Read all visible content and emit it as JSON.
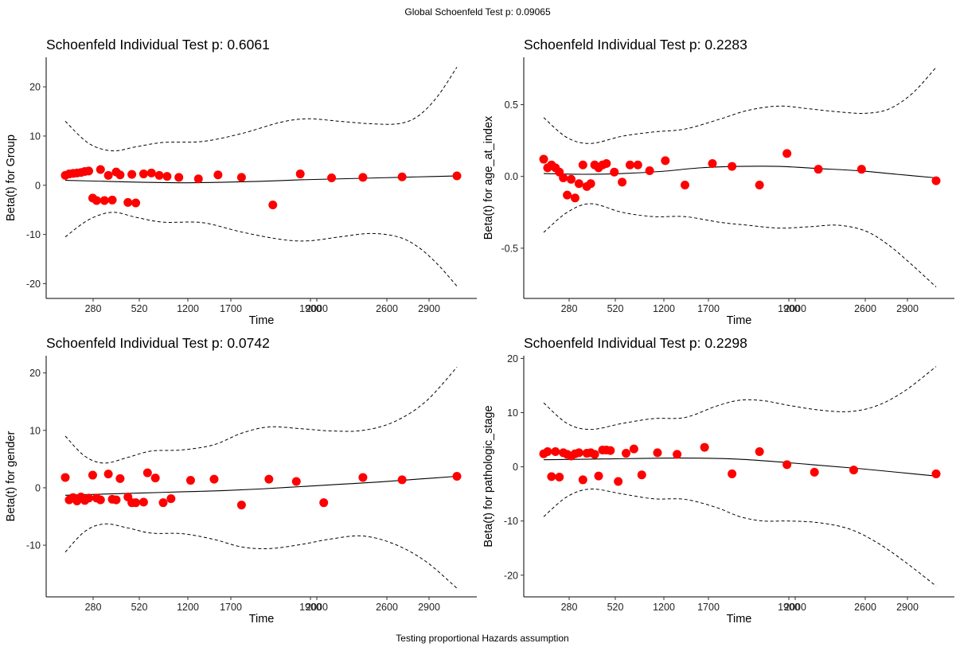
{
  "global_title": "Global Schoenfeld Test p: 0.09065",
  "caption": "Testing proportional Hazards assumption",
  "chart_data": [
    {
      "type": "scatter",
      "title": "Schoenfeld Individual Test p: 0.6061",
      "xlabel": "Time",
      "ylabel": "Beta(t) for Group",
      "x_tick_labels": [
        "280",
        "520",
        "1200",
        "1700",
        "1900",
        "2000",
        "2600",
        "2900"
      ],
      "y_ticks": [
        -20,
        -10,
        0,
        10,
        20
      ],
      "ylim": [
        -23,
        26
      ],
      "point_color": "#ff0000",
      "points": [
        [
          0.0,
          2.0
        ],
        [
          0.01,
          2.3
        ],
        [
          0.02,
          2.4
        ],
        [
          0.03,
          2.5
        ],
        [
          0.04,
          2.6
        ],
        [
          0.05,
          2.8
        ],
        [
          0.06,
          2.9
        ],
        [
          0.07,
          -2.6
        ],
        [
          0.08,
          -3.1
        ],
        [
          0.09,
          3.2
        ],
        [
          0.1,
          -3.1
        ],
        [
          0.11,
          2.0
        ],
        [
          0.12,
          -3.0
        ],
        [
          0.13,
          2.7
        ],
        [
          0.14,
          2.1
        ],
        [
          0.16,
          -3.5
        ],
        [
          0.17,
          2.2
        ],
        [
          0.18,
          -3.6
        ],
        [
          0.2,
          2.3
        ],
        [
          0.22,
          2.5
        ],
        [
          0.24,
          2.0
        ],
        [
          0.26,
          1.8
        ],
        [
          0.29,
          1.6
        ],
        [
          0.34,
          1.3
        ],
        [
          0.39,
          2.1
        ],
        [
          0.45,
          1.6
        ],
        [
          0.53,
          -4.0
        ],
        [
          0.6,
          2.3
        ],
        [
          0.68,
          1.5
        ],
        [
          0.76,
          1.6
        ],
        [
          0.86,
          1.7
        ],
        [
          1.0,
          1.9
        ]
      ],
      "fit": [
        [
          0.0,
          1.0
        ],
        [
          0.1,
          0.8
        ],
        [
          0.2,
          0.6
        ],
        [
          0.3,
          0.5
        ],
        [
          0.4,
          0.6
        ],
        [
          0.5,
          0.8
        ],
        [
          0.6,
          1.1
        ],
        [
          0.7,
          1.3
        ],
        [
          0.8,
          1.5
        ],
        [
          0.9,
          1.7
        ],
        [
          1.0,
          1.9
        ]
      ],
      "upper": [
        [
          0.0,
          13.0
        ],
        [
          0.06,
          8.5
        ],
        [
          0.12,
          7.0
        ],
        [
          0.18,
          7.8
        ],
        [
          0.25,
          8.7
        ],
        [
          0.35,
          8.9
        ],
        [
          0.45,
          10.5
        ],
        [
          0.55,
          12.8
        ],
        [
          0.62,
          13.5
        ],
        [
          0.7,
          13.0
        ],
        [
          0.78,
          12.5
        ],
        [
          0.85,
          12.5
        ],
        [
          0.9,
          14.0
        ],
        [
          0.95,
          18.0
        ],
        [
          1.0,
          24.0
        ]
      ],
      "lower": [
        [
          0.0,
          -10.5
        ],
        [
          0.06,
          -7.0
        ],
        [
          0.12,
          -5.5
        ],
        [
          0.18,
          -6.5
        ],
        [
          0.25,
          -7.5
        ],
        [
          0.35,
          -7.6
        ],
        [
          0.45,
          -9.5
        ],
        [
          0.55,
          -11.0
        ],
        [
          0.62,
          -11.3
        ],
        [
          0.7,
          -10.5
        ],
        [
          0.78,
          -9.8
        ],
        [
          0.85,
          -10.5
        ],
        [
          0.9,
          -12.5
        ],
        [
          0.95,
          -16.0
        ],
        [
          1.0,
          -20.5
        ]
      ]
    },
    {
      "type": "scatter",
      "title": "Schoenfeld Individual Test p: 0.2283",
      "xlabel": "Time",
      "ylabel": "Beta(t) for age_at_index",
      "x_tick_labels": [
        "280",
        "520",
        "1200",
        "1700",
        "1900",
        "2000",
        "2600",
        "2900"
      ],
      "y_ticks": [
        -0.5,
        0.0,
        0.5
      ],
      "ylim": [
        -0.85,
        0.83
      ],
      "point_color": "#ff0000",
      "points": [
        [
          0.0,
          0.12
        ],
        [
          0.01,
          0.06
        ],
        [
          0.02,
          0.08
        ],
        [
          0.03,
          0.06
        ],
        [
          0.04,
          0.03
        ],
        [
          0.05,
          -0.01
        ],
        [
          0.06,
          -0.13
        ],
        [
          0.07,
          -0.02
        ],
        [
          0.08,
          -0.15
        ],
        [
          0.09,
          -0.05
        ],
        [
          0.1,
          0.08
        ],
        [
          0.11,
          -0.07
        ],
        [
          0.12,
          -0.05
        ],
        [
          0.13,
          0.08
        ],
        [
          0.14,
          0.06
        ],
        [
          0.15,
          0.08
        ],
        [
          0.16,
          0.09
        ],
        [
          0.18,
          0.03
        ],
        [
          0.2,
          -0.04
        ],
        [
          0.22,
          0.08
        ],
        [
          0.24,
          0.08
        ],
        [
          0.27,
          0.04
        ],
        [
          0.31,
          0.11
        ],
        [
          0.36,
          -0.06
        ],
        [
          0.43,
          0.09
        ],
        [
          0.48,
          0.07
        ],
        [
          0.55,
          -0.06
        ],
        [
          0.62,
          0.16
        ],
        [
          0.7,
          0.05
        ],
        [
          0.81,
          0.05
        ],
        [
          1.0,
          -0.03
        ]
      ],
      "fit": [
        [
          0.0,
          0.02
        ],
        [
          0.1,
          0.015
        ],
        [
          0.2,
          0.02
        ],
        [
          0.3,
          0.035
        ],
        [
          0.4,
          0.06
        ],
        [
          0.5,
          0.07
        ],
        [
          0.6,
          0.07
        ],
        [
          0.7,
          0.055
        ],
        [
          0.8,
          0.04
        ],
        [
          0.9,
          0.015
        ],
        [
          1.0,
          -0.01
        ]
      ],
      "upper": [
        [
          0.0,
          0.41
        ],
        [
          0.06,
          0.27
        ],
        [
          0.12,
          0.23
        ],
        [
          0.2,
          0.28
        ],
        [
          0.28,
          0.31
        ],
        [
          0.36,
          0.33
        ],
        [
          0.45,
          0.4
        ],
        [
          0.52,
          0.46
        ],
        [
          0.6,
          0.49
        ],
        [
          0.68,
          0.47
        ],
        [
          0.75,
          0.45
        ],
        [
          0.82,
          0.44
        ],
        [
          0.88,
          0.47
        ],
        [
          0.94,
          0.58
        ],
        [
          1.0,
          0.76
        ]
      ],
      "lower": [
        [
          0.0,
          -0.39
        ],
        [
          0.06,
          -0.25
        ],
        [
          0.12,
          -0.19
        ],
        [
          0.2,
          -0.25
        ],
        [
          0.28,
          -0.28
        ],
        [
          0.36,
          -0.28
        ],
        [
          0.45,
          -0.32
        ],
        [
          0.52,
          -0.34
        ],
        [
          0.6,
          -0.36
        ],
        [
          0.68,
          -0.35
        ],
        [
          0.75,
          -0.34
        ],
        [
          0.82,
          -0.38
        ],
        [
          0.88,
          -0.48
        ],
        [
          0.94,
          -0.62
        ],
        [
          1.0,
          -0.77
        ]
      ]
    },
    {
      "type": "scatter",
      "title": "Schoenfeld Individual Test p: 0.0742",
      "xlabel": "Time",
      "ylabel": "Beta(t) for gender",
      "x_tick_labels": [
        "280",
        "520",
        "1200",
        "1700",
        "1900",
        "2000",
        "2600",
        "2900"
      ],
      "y_ticks": [
        -10,
        0,
        10,
        20
      ],
      "ylim": [
        -19,
        23
      ],
      "point_color": "#ff0000",
      "points": [
        [
          0.0,
          1.8
        ],
        [
          0.01,
          -2.1
        ],
        [
          0.02,
          -1.7
        ],
        [
          0.03,
          -2.3
        ],
        [
          0.04,
          -1.6
        ],
        [
          0.05,
          -2.2
        ],
        [
          0.06,
          -1.8
        ],
        [
          0.07,
          2.2
        ],
        [
          0.08,
          -1.8
        ],
        [
          0.09,
          -2.1
        ],
        [
          0.11,
          2.4
        ],
        [
          0.12,
          -2.0
        ],
        [
          0.13,
          -2.1
        ],
        [
          0.14,
          1.6
        ],
        [
          0.16,
          -1.6
        ],
        [
          0.17,
          -2.6
        ],
        [
          0.18,
          -2.6
        ],
        [
          0.2,
          -2.5
        ],
        [
          0.21,
          2.6
        ],
        [
          0.23,
          1.7
        ],
        [
          0.25,
          -2.6
        ],
        [
          0.27,
          -1.9
        ],
        [
          0.32,
          1.3
        ],
        [
          0.38,
          1.5
        ],
        [
          0.45,
          -3.0
        ],
        [
          0.52,
          1.5
        ],
        [
          0.59,
          1.1
        ],
        [
          0.66,
          -2.6
        ],
        [
          0.76,
          1.8
        ],
        [
          0.86,
          1.4
        ],
        [
          1.0,
          2.0
        ]
      ],
      "fit": [
        [
          0.0,
          -1.3
        ],
        [
          0.1,
          -1.1
        ],
        [
          0.2,
          -0.9
        ],
        [
          0.3,
          -0.7
        ],
        [
          0.4,
          -0.5
        ],
        [
          0.5,
          -0.2
        ],
        [
          0.6,
          0.2
        ],
        [
          0.7,
          0.6
        ],
        [
          0.8,
          1.0
        ],
        [
          0.9,
          1.5
        ],
        [
          1.0,
          2.0
        ]
      ],
      "upper": [
        [
          0.0,
          9.0
        ],
        [
          0.05,
          5.5
        ],
        [
          0.1,
          4.3
        ],
        [
          0.16,
          5.3
        ],
        [
          0.22,
          6.4
        ],
        [
          0.3,
          6.6
        ],
        [
          0.38,
          7.5
        ],
        [
          0.45,
          9.5
        ],
        [
          0.52,
          10.6
        ],
        [
          0.6,
          10.3
        ],
        [
          0.68,
          9.9
        ],
        [
          0.76,
          10.0
        ],
        [
          0.84,
          11.5
        ],
        [
          0.92,
          15.0
        ],
        [
          1.0,
          21.0
        ]
      ],
      "lower": [
        [
          0.0,
          -11.2
        ],
        [
          0.05,
          -7.6
        ],
        [
          0.1,
          -6.3
        ],
        [
          0.16,
          -7.0
        ],
        [
          0.22,
          -7.9
        ],
        [
          0.3,
          -8.0
        ],
        [
          0.38,
          -9.0
        ],
        [
          0.45,
          -10.3
        ],
        [
          0.52,
          -10.6
        ],
        [
          0.6,
          -9.9
        ],
        [
          0.68,
          -8.9
        ],
        [
          0.76,
          -8.4
        ],
        [
          0.84,
          -9.8
        ],
        [
          0.92,
          -12.8
        ],
        [
          1.0,
          -17.5
        ]
      ]
    },
    {
      "type": "scatter",
      "title": "Schoenfeld Individual Test p: 0.2298",
      "xlabel": "Time",
      "ylabel": "Beta(t) for pathologic_stage",
      "x_tick_labels": [
        "280",
        "520",
        "1200",
        "1700",
        "1900",
        "2000",
        "2600",
        "2900"
      ],
      "y_ticks": [
        -20,
        -10,
        0,
        10,
        20
      ],
      "ylim": [
        -24,
        20.5
      ],
      "point_color": "#ff0000",
      "points": [
        [
          0.0,
          2.4
        ],
        [
          0.01,
          2.8
        ],
        [
          0.02,
          -1.8
        ],
        [
          0.03,
          2.8
        ],
        [
          0.04,
          -1.9
        ],
        [
          0.05,
          2.6
        ],
        [
          0.06,
          2.3
        ],
        [
          0.07,
          2.0
        ],
        [
          0.08,
          2.4
        ],
        [
          0.09,
          2.6
        ],
        [
          0.1,
          -2.4
        ],
        [
          0.11,
          2.5
        ],
        [
          0.12,
          2.6
        ],
        [
          0.13,
          2.3
        ],
        [
          0.14,
          -1.7
        ],
        [
          0.15,
          3.1
        ],
        [
          0.16,
          3.1
        ],
        [
          0.17,
          3.0
        ],
        [
          0.19,
          -2.7
        ],
        [
          0.21,
          2.5
        ],
        [
          0.23,
          3.3
        ],
        [
          0.25,
          -1.5
        ],
        [
          0.29,
          2.6
        ],
        [
          0.34,
          2.3
        ],
        [
          0.41,
          3.6
        ],
        [
          0.48,
          -1.3
        ],
        [
          0.55,
          2.8
        ],
        [
          0.62,
          0.4
        ],
        [
          0.69,
          -1.0
        ],
        [
          0.79,
          -0.6
        ],
        [
          1.0,
          -1.3
        ]
      ],
      "fit": [
        [
          0.0,
          1.3
        ],
        [
          0.1,
          1.4
        ],
        [
          0.2,
          1.5
        ],
        [
          0.3,
          1.6
        ],
        [
          0.4,
          1.6
        ],
        [
          0.5,
          1.4
        ],
        [
          0.6,
          0.9
        ],
        [
          0.7,
          0.3
        ],
        [
          0.8,
          -0.3
        ],
        [
          0.9,
          -1.0
        ],
        [
          1.0,
          -1.7
        ]
      ],
      "upper": [
        [
          0.0,
          11.8
        ],
        [
          0.06,
          8.0
        ],
        [
          0.12,
          6.9
        ],
        [
          0.2,
          8.0
        ],
        [
          0.28,
          8.9
        ],
        [
          0.36,
          9.1
        ],
        [
          0.44,
          11.2
        ],
        [
          0.5,
          12.3
        ],
        [
          0.56,
          12.2
        ],
        [
          0.62,
          11.4
        ],
        [
          0.7,
          10.5
        ],
        [
          0.78,
          10.2
        ],
        [
          0.85,
          11.3
        ],
        [
          0.92,
          14.0
        ],
        [
          1.0,
          18.5
        ]
      ],
      "lower": [
        [
          0.0,
          -9.2
        ],
        [
          0.06,
          -5.5
        ],
        [
          0.12,
          -4.1
        ],
        [
          0.2,
          -5.0
        ],
        [
          0.28,
          -5.9
        ],
        [
          0.36,
          -6.0
        ],
        [
          0.44,
          -7.5
        ],
        [
          0.5,
          -9.2
        ],
        [
          0.56,
          -10.0
        ],
        [
          0.62,
          -10.0
        ],
        [
          0.7,
          -10.3
        ],
        [
          0.78,
          -11.5
        ],
        [
          0.85,
          -14.0
        ],
        [
          0.92,
          -17.5
        ],
        [
          1.0,
          -22.0
        ]
      ]
    }
  ]
}
